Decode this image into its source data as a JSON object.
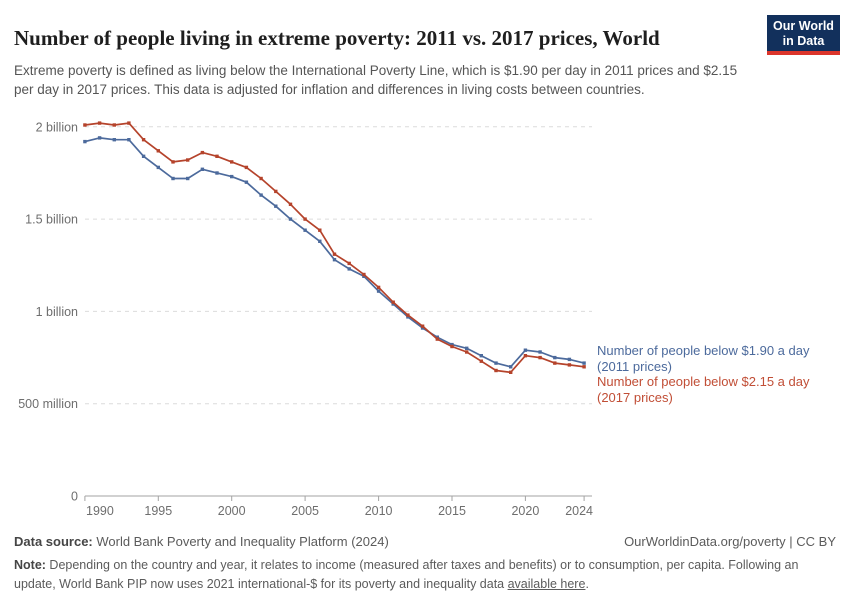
{
  "header": {
    "title": "Number of people living in extreme poverty: 2011 vs. 2017 prices, World",
    "subtitle": "Extreme poverty is defined as living below the International Poverty Line, which is $1.90 per day in 2011 prices and $2.15 per day in 2017 prices. This data is adjusted for inflation and differences in living costs between countries.",
    "logo": {
      "line1": "Our World",
      "line2": "in Data",
      "bg": "#12305c",
      "stripe": "#dc352b"
    }
  },
  "chart_data": {
    "type": "line",
    "title": "Number of people living in extreme poverty: 2011 vs. 2017 prices, World",
    "unit": "billions of people",
    "x": [
      1990,
      1991,
      1992,
      1993,
      1994,
      1995,
      1996,
      1997,
      1998,
      1999,
      2000,
      2001,
      2002,
      2003,
      2004,
      2005,
      2006,
      2007,
      2008,
      2009,
      2010,
      2011,
      2012,
      2013,
      2014,
      2015,
      2016,
      2017,
      2018,
      2019,
      2020,
      2021,
      2022,
      2023,
      2024
    ],
    "series": [
      {
        "name": "Number of people below $1.90 a day (2011 prices)",
        "label": "Number of people below $1.90 a day",
        "sublabel": "(2011 prices)",
        "color": "#4C6A9C",
        "text_color": "#4C6A9C",
        "values": [
          1.92,
          1.94,
          1.93,
          1.93,
          1.84,
          1.78,
          1.72,
          1.72,
          1.77,
          1.75,
          1.73,
          1.7,
          1.63,
          1.57,
          1.5,
          1.44,
          1.38,
          1.28,
          1.23,
          1.19,
          1.11,
          1.04,
          0.97,
          0.91,
          0.86,
          0.82,
          0.8,
          0.76,
          0.72,
          0.7,
          0.79,
          0.78,
          0.75,
          0.74,
          0.72
        ]
      },
      {
        "name": "Number of people below $2.15 a day (2017 prices)",
        "label": "Number of people below $2.15 a day",
        "sublabel": "(2017 prices)",
        "color": "#B5432B",
        "text_color": "#C14E36",
        "values": [
          2.01,
          2.02,
          2.01,
          2.02,
          1.93,
          1.87,
          1.81,
          1.82,
          1.86,
          1.84,
          1.81,
          1.78,
          1.72,
          1.65,
          1.58,
          1.5,
          1.44,
          1.31,
          1.26,
          1.2,
          1.13,
          1.05,
          0.98,
          0.92,
          0.85,
          0.81,
          0.78,
          0.73,
          0.68,
          0.67,
          0.76,
          0.75,
          0.72,
          0.71,
          0.7
        ]
      }
    ],
    "xlabel": "",
    "ylabel": "",
    "xlim": [
      1990,
      2024
    ],
    "ylim": [
      0,
      2.05
    ],
    "yticks": [
      {
        "value": 2,
        "label": "2 billion"
      },
      {
        "value": 1.5,
        "label": "1.5 billion"
      },
      {
        "value": 1,
        "label": "1 billion"
      },
      {
        "value": 0.5,
        "label": "500 million"
      },
      {
        "value": 0,
        "label": "0"
      }
    ],
    "xticks": [
      1990,
      1995,
      2000,
      2005,
      2010,
      2015,
      2020,
      2024
    ],
    "grid": "horizontal-dashed",
    "legend_position": "line-end-labels-right",
    "grid_color": "#dcdcdc",
    "axis_color": "#a3a3a3",
    "tick_text_color": "#6e6e6e"
  },
  "footer": {
    "datasource_label": "Data source:",
    "datasource_value": " World Bank Poverty and Inequality Platform (2024)",
    "rights": "OurWorldinData.org/poverty | CC BY",
    "note_label": "Note:",
    "note_before_link": " Depending on the country and year, it relates to income (measured after taxes and benefits) or to consumption, per capita. Following an update, World Bank PIP now uses 2021 international-$ for its poverty and inequality data ",
    "note_link": "available here",
    "note_after_link": "."
  }
}
